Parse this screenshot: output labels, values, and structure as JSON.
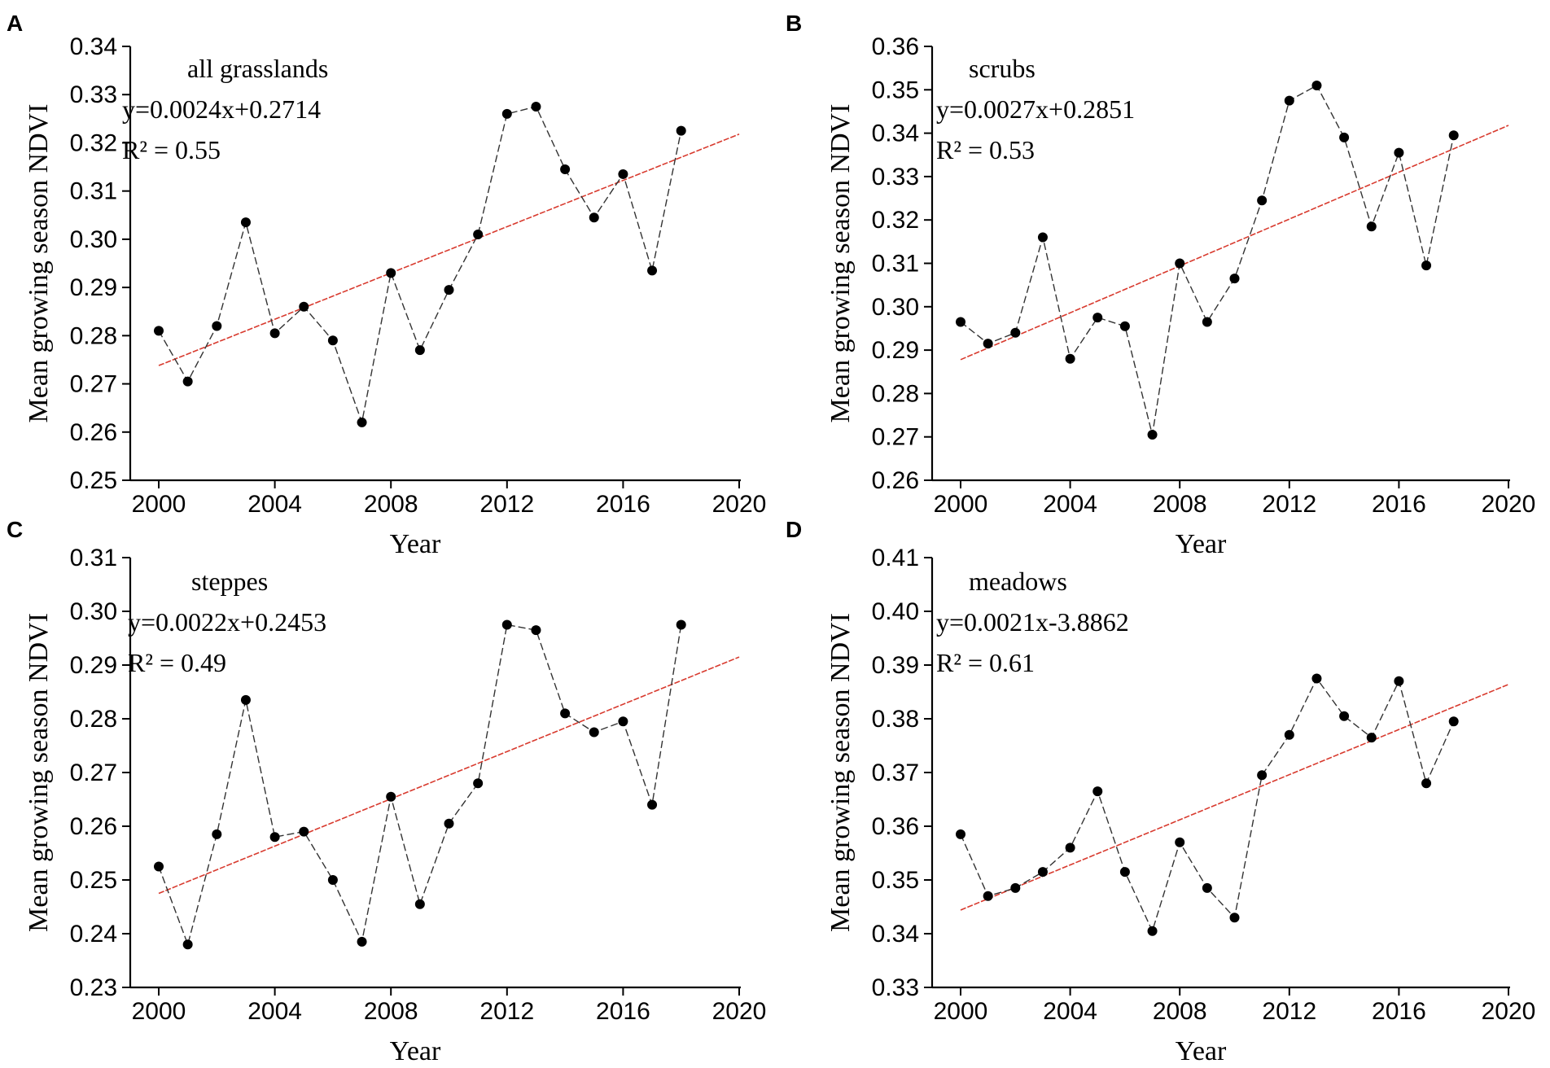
{
  "chart_data": [
    {
      "type": "line",
      "panel": "A",
      "title": "all grasslands",
      "equation": "y=0.0024x+0.2714",
      "r2": "R² = 0.55",
      "xlabel": "Year",
      "ylabel": "Mean growing season NDVI",
      "xlim": [
        2000,
        2020
      ],
      "ylim": [
        0.25,
        0.34
      ],
      "xticks": [
        "2000",
        "2004",
        "2008",
        "2012",
        "2016",
        "2020"
      ],
      "yticks": [
        "0.25",
        "0.26",
        "0.27",
        "0.28",
        "0.29",
        "0.30",
        "0.31",
        "0.32",
        "0.33",
        "0.34"
      ],
      "x": [
        2000,
        2001,
        2002,
        2003,
        2004,
        2005,
        2006,
        2007,
        2008,
        2009,
        2010,
        2011,
        2012,
        2013,
        2014,
        2015,
        2016,
        2017,
        2018
      ],
      "values": [
        0.281,
        0.2705,
        0.282,
        0.3035,
        0.2805,
        0.286,
        0.279,
        0.262,
        0.293,
        0.277,
        0.2895,
        0.301,
        0.326,
        0.3275,
        0.3145,
        0.3045,
        0.3135,
        0.2935,
        0.3225
      ],
      "trend": {
        "x": [
          2000,
          2020
        ],
        "y": [
          0.2738,
          0.3218
        ]
      },
      "colors": {
        "series": "#333333",
        "trend": "#d83a2e"
      }
    },
    {
      "type": "line",
      "panel": "B",
      "title": "scrubs",
      "equation": "y=0.0027x+0.2851",
      "r2": "R² = 0.53",
      "xlabel": "Year",
      "ylabel": "Mean growing season NDVI",
      "xlim": [
        2000,
        2020
      ],
      "ylim": [
        0.26,
        0.36
      ],
      "xticks": [
        "2000",
        "2004",
        "2008",
        "2012",
        "2016",
        "2020"
      ],
      "yticks": [
        "0.26",
        "0.27",
        "0.28",
        "0.29",
        "0.30",
        "0.31",
        "0.32",
        "0.33",
        "0.34",
        "0.35",
        "0.36"
      ],
      "x": [
        2000,
        2001,
        2002,
        2003,
        2004,
        2005,
        2006,
        2007,
        2008,
        2009,
        2010,
        2011,
        2012,
        2013,
        2014,
        2015,
        2016,
        2017,
        2018
      ],
      "values": [
        0.2965,
        0.2915,
        0.294,
        0.316,
        0.288,
        0.2975,
        0.2955,
        0.2705,
        0.31,
        0.2965,
        0.3065,
        0.3245,
        0.3475,
        0.351,
        0.339,
        0.3185,
        0.3355,
        0.3095,
        0.3395
      ],
      "trend": {
        "x": [
          2000,
          2020
        ],
        "y": [
          0.2878,
          0.3418
        ]
      },
      "colors": {
        "series": "#333333",
        "trend": "#d83a2e"
      }
    },
    {
      "type": "line",
      "panel": "C",
      "title": "steppes",
      "equation": "y=0.0022x+0.2453",
      "r2": "R² = 0.49",
      "xlabel": "Year",
      "ylabel": "Mean growing season NDVI",
      "xlim": [
        2000,
        2020
      ],
      "ylim": [
        0.23,
        0.31
      ],
      "xticks": [
        "2000",
        "2004",
        "2008",
        "2012",
        "2016",
        "2020"
      ],
      "yticks": [
        "0.23",
        "0.24",
        "0.25",
        "0.26",
        "0.27",
        "0.28",
        "0.29",
        "0.30",
        "0.31"
      ],
      "x": [
        2000,
        2001,
        2002,
        2003,
        2004,
        2005,
        2006,
        2007,
        2008,
        2009,
        2010,
        2011,
        2012,
        2013,
        2014,
        2015,
        2016,
        2017,
        2018
      ],
      "values": [
        0.2525,
        0.238,
        0.2585,
        0.2835,
        0.258,
        0.259,
        0.25,
        0.2385,
        0.2655,
        0.2455,
        0.2605,
        0.268,
        0.2975,
        0.2965,
        0.281,
        0.2775,
        0.2795,
        0.264,
        0.2975
      ],
      "trend": {
        "x": [
          2000,
          2020
        ],
        "y": [
          0.2475,
          0.2915
        ]
      },
      "colors": {
        "series": "#333333",
        "trend": "#d83a2e"
      }
    },
    {
      "type": "line",
      "panel": "D",
      "title": "meadows",
      "equation": "y=0.0021x-3.8862",
      "r2": "R² = 0.61",
      "xlabel": "Year",
      "ylabel": "Mean growing season NDVI",
      "xlim": [
        2000,
        2020
      ],
      "ylim": [
        0.33,
        0.41
      ],
      "xticks": [
        "2000",
        "2004",
        "2008",
        "2012",
        "2016",
        "2020"
      ],
      "yticks": [
        "0.33",
        "0.34",
        "0.35",
        "0.36",
        "0.37",
        "0.38",
        "0.39",
        "0.40",
        "0.41"
      ],
      "x": [
        2000,
        2001,
        2002,
        2003,
        2004,
        2005,
        2006,
        2007,
        2008,
        2009,
        2010,
        2011,
        2012,
        2013,
        2014,
        2015,
        2016,
        2017,
        2018
      ],
      "values": [
        0.3585,
        0.347,
        0.3485,
        0.3515,
        0.356,
        0.3665,
        0.3515,
        0.3405,
        0.357,
        0.3485,
        0.343,
        0.3695,
        0.377,
        0.3875,
        0.3805,
        0.3765,
        0.387,
        0.368,
        0.3795
      ],
      "trend": {
        "x": [
          2000,
          2020
        ],
        "y": [
          0.3444,
          0.3864
        ]
      },
      "colors": {
        "series": "#333333",
        "trend": "#d83a2e"
      }
    }
  ]
}
